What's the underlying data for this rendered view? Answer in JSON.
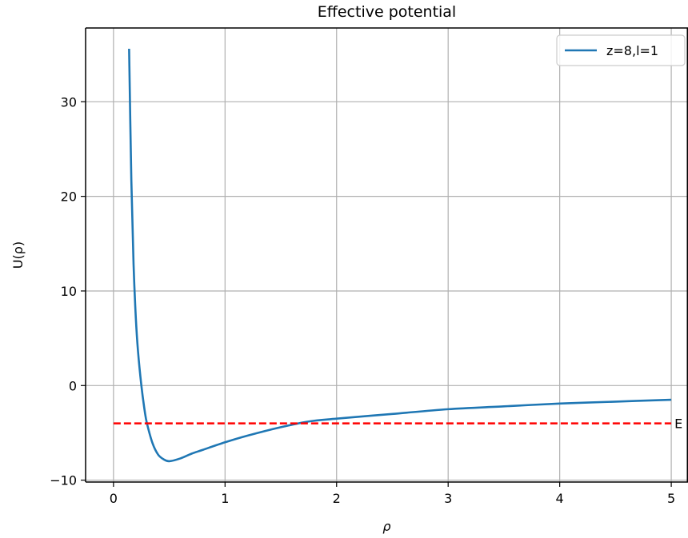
{
  "chart_data": {
    "type": "line",
    "title": "Effective potential",
    "xlabel": "ρ",
    "ylabel": "U(ρ)",
    "xlim": [
      -0.25,
      5.15
    ],
    "ylim": [
      -10.2,
      37.8
    ],
    "xticks": [
      0,
      1,
      2,
      3,
      4,
      5
    ],
    "xtick_labels": [
      "0",
      "1",
      "2",
      "3",
      "4",
      "5"
    ],
    "yticks": [
      -10,
      0,
      10,
      20,
      30
    ],
    "ytick_labels": [
      "−10",
      "0",
      "10",
      "20",
      "30"
    ],
    "grid": true,
    "legend_position": "top-right",
    "colors": {
      "curve": "#1f77b4",
      "energy_line": "#ff0000",
      "grid": "#b0b0b0",
      "axes": "#000000"
    },
    "series": [
      {
        "name": "z=8,l=1",
        "style": "solid",
        "x": [
          0.14,
          0.16,
          0.18,
          0.2,
          0.22,
          0.25,
          0.28,
          0.3,
          0.35,
          0.4,
          0.45,
          0.5,
          0.6,
          0.7,
          0.8,
          1.0,
          1.2,
          1.5,
          1.75,
          2.0,
          2.5,
          3.0,
          3.5,
          4.0,
          4.5,
          5.0
        ],
        "y": [
          35.6,
          21.7,
          12.8,
          7.2,
          3.6,
          0.0,
          -2.7,
          -4.0,
          -6.1,
          -7.3,
          -7.8,
          -8.0,
          -7.7,
          -7.2,
          -6.8,
          -6.0,
          -5.3,
          -4.4,
          -3.8,
          -3.5,
          -3.0,
          -2.5,
          -2.2,
          -1.9,
          -1.7,
          -1.5
        ]
      }
    ],
    "hlines": [
      {
        "label": "E",
        "y": -4.0,
        "x_start": 0,
        "x_end": 5,
        "style": "dashed"
      }
    ]
  }
}
